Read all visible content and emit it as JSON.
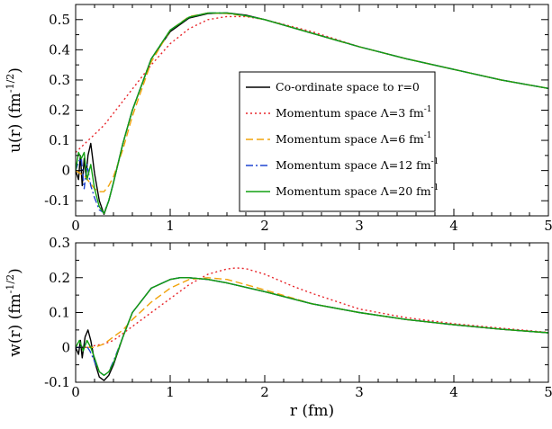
{
  "chart_data": [
    {
      "type": "line",
      "ylabel": "u(r) (fm",
      "ylabel_sup": "-1/2",
      "ylabel_end": ")",
      "xlim": [
        0,
        5
      ],
      "ylim": [
        -0.15,
        0.55
      ],
      "xticks": [
        "0",
        "1",
        "2",
        "3",
        "4",
        "5"
      ],
      "yticks": [
        "-0.1",
        "0",
        "0.1",
        "0.2",
        "0.3",
        "0.4",
        "0.5"
      ],
      "ytick_values": [
        -0.1,
        0,
        0.1,
        0.2,
        0.3,
        0.4,
        0.5
      ],
      "legend": "center-right",
      "series": [
        {
          "name": "Co-ordinate space to r=0",
          "color": "#000000",
          "style": "solid",
          "x": [
            0,
            0.03,
            0.05,
            0.07,
            0.09,
            0.11,
            0.13,
            0.16,
            0.2,
            0.25,
            0.3,
            0.35,
            0.4,
            0.5,
            0.6,
            0.8,
            1.0,
            1.2,
            1.4,
            1.6,
            1.8,
            2.0,
            2.5,
            3.0,
            3.5,
            4.0,
            4.5,
            5.0
          ],
          "y": [
            0,
            -0.03,
            0.05,
            -0.05,
            0.04,
            -0.02,
            0.05,
            0.09,
            -0.01,
            -0.1,
            -0.145,
            -0.1,
            -0.04,
            0.09,
            0.2,
            0.37,
            0.46,
            0.505,
            0.52,
            0.522,
            0.515,
            0.5,
            0.455,
            0.41,
            0.37,
            0.335,
            0.3,
            0.272
          ]
        },
        {
          "name": "Momentum space Λ=3 fm",
          "sup": "-1",
          "color": "#e8262b",
          "style": "dotted",
          "x": [
            0,
            0.1,
            0.2,
            0.3,
            0.4,
            0.5,
            0.6,
            0.8,
            1.0,
            1.2,
            1.4,
            1.6,
            1.8,
            2.0,
            2.5,
            3.0,
            3.5,
            4.0,
            4.5,
            5.0
          ],
          "y": [
            0.06,
            0.09,
            0.12,
            0.15,
            0.19,
            0.23,
            0.27,
            0.35,
            0.42,
            0.47,
            0.5,
            0.51,
            0.51,
            0.5,
            0.46,
            0.41,
            0.37,
            0.335,
            0.3,
            0.272
          ]
        },
        {
          "name": "Momentum space Λ=6 fm",
          "sup": "-1",
          "color": "#f0a30a",
          "style": "dashed",
          "x": [
            0,
            0.05,
            0.1,
            0.15,
            0.2,
            0.25,
            0.3,
            0.35,
            0.4,
            0.5,
            0.6,
            0.8,
            1.0,
            1.2,
            1.4,
            1.6,
            1.8,
            2.0,
            2.5,
            3.0,
            3.5,
            4.0,
            4.5,
            5.0
          ],
          "y": [
            0.0,
            -0.01,
            -0.02,
            -0.04,
            -0.06,
            -0.07,
            -0.07,
            -0.05,
            -0.02,
            0.07,
            0.18,
            0.36,
            0.465,
            0.51,
            0.522,
            0.52,
            0.512,
            0.5,
            0.455,
            0.41,
            0.37,
            0.335,
            0.3,
            0.272
          ]
        },
        {
          "name": "Momentum space Λ=12 fm",
          "sup": "-1",
          "color": "#1f45d1",
          "style": "dashdot",
          "x": [
            0,
            0.03,
            0.06,
            0.09,
            0.12,
            0.16,
            0.2,
            0.25,
            0.3,
            0.35,
            0.4,
            0.5,
            0.6,
            0.8,
            1.0,
            1.2,
            1.4,
            1.6,
            1.8,
            2.0,
            2.5,
            3.0,
            3.5,
            4.0,
            4.5,
            5.0
          ],
          "y": [
            0.0,
            0.03,
            0.04,
            -0.06,
            0.02,
            -0.05,
            -0.09,
            -0.13,
            -0.14,
            -0.1,
            -0.04,
            0.09,
            0.2,
            0.37,
            0.465,
            0.508,
            0.522,
            0.522,
            0.513,
            0.5,
            0.455,
            0.41,
            0.37,
            0.335,
            0.3,
            0.272
          ]
        },
        {
          "name": "Momentum space Λ=20 fm",
          "sup": "-1",
          "color": "#12a012",
          "style": "solid",
          "x": [
            0,
            0.03,
            0.06,
            0.09,
            0.12,
            0.16,
            0.2,
            0.25,
            0.3,
            0.35,
            0.4,
            0.5,
            0.6,
            0.8,
            1.0,
            1.2,
            1.4,
            1.6,
            1.8,
            2.0,
            2.5,
            3.0,
            3.5,
            4.0,
            4.5,
            5.0
          ],
          "y": [
            0.0,
            0.06,
            0.04,
            0.06,
            -0.03,
            0.02,
            -0.06,
            -0.12,
            -0.142,
            -0.1,
            -0.04,
            0.09,
            0.2,
            0.37,
            0.465,
            0.508,
            0.522,
            0.522,
            0.513,
            0.5,
            0.455,
            0.41,
            0.37,
            0.335,
            0.3,
            0.272
          ]
        }
      ]
    },
    {
      "type": "line",
      "ylabel": "w(r) (fm",
      "ylabel_sup": "-1/2",
      "ylabel_end": ")",
      "xlabel": "r (fm)",
      "xlim": [
        0,
        5
      ],
      "ylim": [
        -0.1,
        0.3
      ],
      "xticks": [
        "0",
        "1",
        "2",
        "3",
        "4",
        "5"
      ],
      "yticks": [
        "-0.1",
        "0",
        "0.1",
        "0.2",
        "0.3"
      ],
      "ytick_values": [
        -0.1,
        0,
        0.1,
        0.2,
        0.3
      ],
      "series": [
        {
          "name": "Co-ordinate space to r=0",
          "color": "#000000",
          "style": "solid",
          "x": [
            0,
            0.03,
            0.05,
            0.07,
            0.1,
            0.13,
            0.16,
            0.2,
            0.25,
            0.3,
            0.35,
            0.4,
            0.5,
            0.6,
            0.8,
            1.0,
            1.1,
            1.2,
            1.4,
            1.6,
            2.0,
            2.5,
            3.0,
            3.5,
            4.0,
            4.5,
            5.0
          ],
          "y": [
            0,
            -0.02,
            0.02,
            -0.03,
            0.03,
            0.05,
            0.02,
            -0.04,
            -0.085,
            -0.095,
            -0.08,
            -0.05,
            0.03,
            0.1,
            0.17,
            0.195,
            0.2,
            0.2,
            0.195,
            0.185,
            0.16,
            0.125,
            0.1,
            0.08,
            0.065,
            0.052,
            0.042
          ]
        },
        {
          "name": "Momentum space Λ=3 fm",
          "sup": "-1",
          "color": "#e8262b",
          "style": "dotted",
          "x": [
            0,
            0.1,
            0.2,
            0.3,
            0.4,
            0.5,
            0.6,
            0.8,
            1.0,
            1.2,
            1.4,
            1.6,
            1.7,
            1.8,
            2.0,
            2.3,
            2.5,
            3.0,
            3.5,
            4.0,
            4.5,
            5.0
          ],
          "y": [
            0,
            0.0,
            0.005,
            0.01,
            0.02,
            0.04,
            0.06,
            0.1,
            0.14,
            0.18,
            0.21,
            0.225,
            0.228,
            0.226,
            0.21,
            0.175,
            0.155,
            0.11,
            0.085,
            0.068,
            0.055,
            0.043
          ]
        },
        {
          "name": "Momentum space Λ=6 fm",
          "sup": "-1",
          "color": "#f0a30a",
          "style": "dashed",
          "x": [
            0,
            0.1,
            0.2,
            0.3,
            0.4,
            0.5,
            0.6,
            0.8,
            1.0,
            1.2,
            1.4,
            1.6,
            2.0,
            2.5,
            3.0,
            3.5,
            4.0,
            4.5,
            5.0
          ],
          "y": [
            0,
            0.0,
            0.0,
            0.01,
            0.03,
            0.05,
            0.08,
            0.13,
            0.17,
            0.195,
            0.2,
            0.195,
            0.165,
            0.125,
            0.1,
            0.08,
            0.065,
            0.052,
            0.042
          ]
        },
        {
          "name": "Momentum space Λ=12 fm",
          "sup": "-1",
          "color": "#1f45d1",
          "style": "dashdot",
          "x": [
            0,
            0.05,
            0.1,
            0.15,
            0.2,
            0.25,
            0.3,
            0.35,
            0.4,
            0.5,
            0.6,
            0.8,
            1.0,
            1.1,
            1.2,
            1.4,
            1.6,
            2.0,
            2.5,
            3.0,
            3.5,
            4.0,
            4.5,
            5.0
          ],
          "y": [
            0,
            0.0,
            0.01,
            -0.01,
            -0.04,
            -0.07,
            -0.08,
            -0.07,
            -0.04,
            0.03,
            0.1,
            0.17,
            0.195,
            0.2,
            0.2,
            0.195,
            0.185,
            0.16,
            0.125,
            0.1,
            0.08,
            0.065,
            0.052,
            0.042
          ]
        },
        {
          "name": "Momentum space Λ=20 fm",
          "sup": "-1",
          "color": "#12a012",
          "style": "solid",
          "x": [
            0,
            0.04,
            0.08,
            0.12,
            0.16,
            0.2,
            0.25,
            0.3,
            0.35,
            0.4,
            0.5,
            0.6,
            0.8,
            1.0,
            1.1,
            1.2,
            1.4,
            1.6,
            2.0,
            2.5,
            3.0,
            3.5,
            4.0,
            4.5,
            5.0
          ],
          "y": [
            0,
            0.02,
            -0.01,
            0.02,
            0.0,
            -0.03,
            -0.07,
            -0.08,
            -0.07,
            -0.045,
            0.03,
            0.1,
            0.17,
            0.195,
            0.2,
            0.2,
            0.195,
            0.185,
            0.16,
            0.125,
            0.1,
            0.08,
            0.065,
            0.052,
            0.042
          ]
        }
      ]
    }
  ]
}
